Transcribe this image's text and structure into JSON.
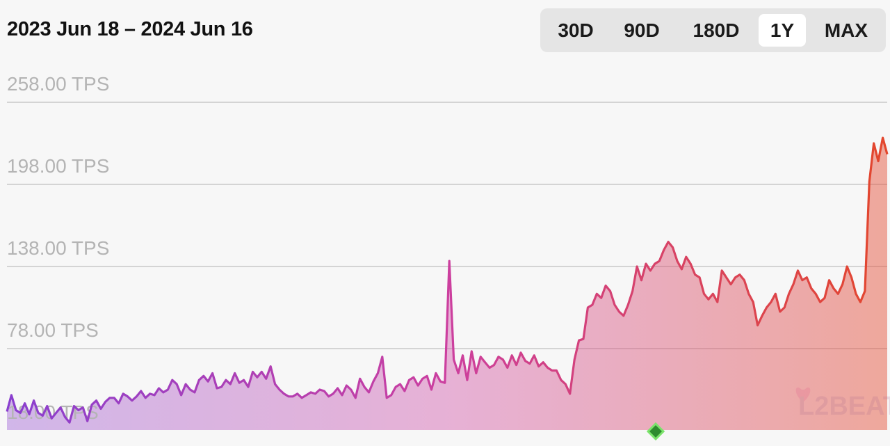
{
  "header": {
    "date_range": "2023 Jun 18 – 2024 Jun 16"
  },
  "range_selector": {
    "options": [
      "30D",
      "90D",
      "180D",
      "1Y",
      "MAX"
    ],
    "selected": "1Y"
  },
  "watermark": "L2BEAT",
  "colors": {
    "start": "#8a3fcf",
    "middle": "#cc3f9f",
    "end": "#e3462c",
    "marker": "#2e8b2e"
  },
  "chart_data": {
    "type": "area",
    "title": "",
    "xlabel": "",
    "ylabel": "",
    "x_start": "2023 Jun 18",
    "x_end": "2024 Jun 16",
    "y_ticks": [
      "18.00 TPS",
      "78.00 TPS",
      "138.00 TPS",
      "198.00 TPS",
      "258.00 TPS"
    ],
    "ylim": [
      18,
      258
    ],
    "grid": true,
    "series": [
      {
        "name": "",
        "values": [
          32,
          44,
          33,
          31,
          38,
          30,
          40,
          31,
          29,
          36,
          27,
          31,
          35,
          28,
          24,
          36,
          33,
          35,
          25,
          37,
          40,
          34,
          39,
          42,
          42,
          38,
          45,
          43,
          40,
          43,
          47,
          42,
          45,
          44,
          49,
          46,
          48,
          55,
          52,
          44,
          52,
          48,
          46,
          55,
          58,
          54,
          60,
          49,
          50,
          55,
          52,
          60,
          53,
          55,
          50,
          61,
          57,
          61,
          56,
          65,
          52,
          48,
          45,
          43,
          43,
          45,
          42,
          44,
          46,
          45,
          48,
          47,
          43,
          45,
          49,
          44,
          51,
          48,
          42,
          56,
          50,
          46,
          54,
          60,
          72,
          42,
          44,
          50,
          52,
          47,
          55,
          57,
          51,
          56,
          58,
          48,
          60,
          54,
          53,
          142,
          70,
          60,
          73,
          55,
          76,
          60,
          72,
          68,
          64,
          66,
          72,
          70,
          64,
          73,
          66,
          75,
          69,
          67,
          73,
          65,
          68,
          64,
          62,
          62,
          55,
          52,
          45,
          70,
          84,
          85,
          108,
          110,
          118,
          115,
          124,
          120,
          110,
          105,
          102,
          110,
          120,
          138,
          128,
          140,
          135,
          140,
          142,
          150,
          156,
          152,
          142,
          136,
          145,
          140,
          132,
          130,
          118,
          114,
          118,
          112,
          135,
          130,
          125,
          130,
          132,
          128,
          118,
          112,
          95,
          102,
          108,
          112,
          118,
          105,
          108,
          118,
          125,
          135,
          128,
          130,
          122,
          118,
          112,
          115,
          128,
          122,
          118,
          125,
          138,
          130,
          118,
          112,
          120,
          200,
          228,
          215,
          232,
          220
        ]
      }
    ],
    "marker_position": 0.737
  }
}
